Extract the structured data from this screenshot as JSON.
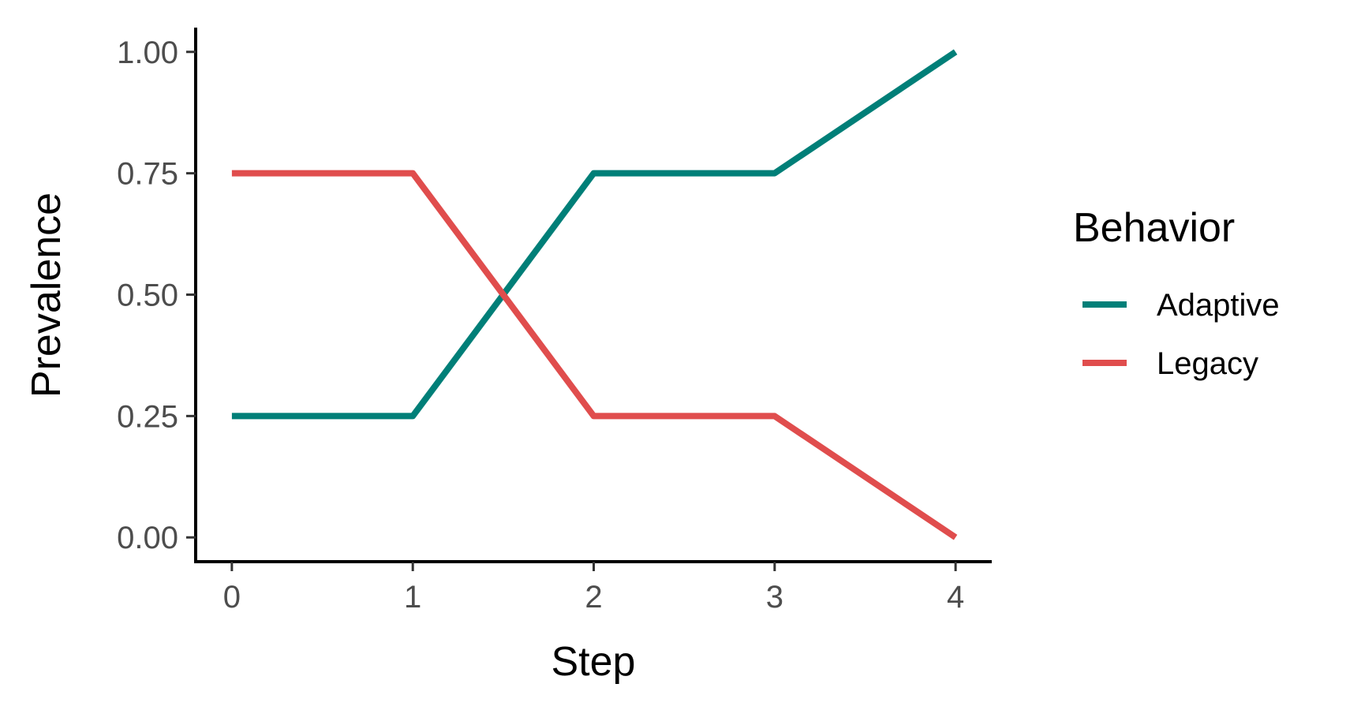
{
  "chart_data": {
    "type": "line",
    "x": [
      0,
      1,
      2,
      3,
      4
    ],
    "xlabel": "Step",
    "ylabel": "Prevalence",
    "xlim": [
      -0.2,
      4.2
    ],
    "ylim": [
      -0.05,
      1.05
    ],
    "xticks": [
      0,
      1,
      2,
      3,
      4
    ],
    "xtick_labels": [
      "0",
      "1",
      "2",
      "3",
      "4"
    ],
    "yticks": [
      0,
      0.25,
      0.5,
      0.75,
      1.0
    ],
    "ytick_labels": [
      "0.00",
      "0.25",
      "0.50",
      "0.75",
      "1.00"
    ],
    "grid": false,
    "legend": {
      "title": "Behavior",
      "position": "right"
    },
    "series": [
      {
        "name": "Adaptive",
        "color": "#007f78",
        "values": [
          0.25,
          0.25,
          0.75,
          0.75,
          1.0
        ]
      },
      {
        "name": "Legacy",
        "color": "#e04d4d",
        "values": [
          0.75,
          0.75,
          0.25,
          0.25,
          0.0
        ]
      }
    ]
  }
}
